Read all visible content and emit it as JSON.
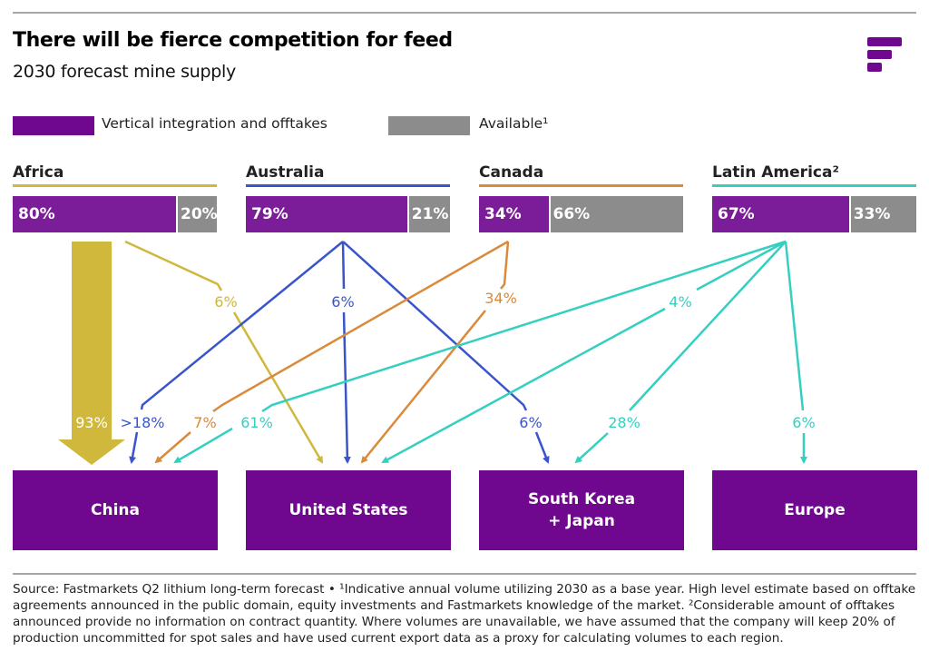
{
  "header": {
    "title": "There will be fierce competition for feed",
    "subtitle": "2030 forecast mine supply"
  },
  "logo": {
    "icon": "fastmarkets-logo-icon"
  },
  "legend": [
    {
      "label": "Vertical integration and offtakes",
      "color": "#6f078f"
    },
    {
      "label": "Available¹",
      "color": "#8c8c8c"
    }
  ],
  "colors": {
    "africa": "#cfb83b",
    "australia": "#3a55cc",
    "canada": "#d98a3a",
    "latin_america": "#35cfc2",
    "integration": "#7b1c98",
    "available": "#8c8c8c",
    "destination": "#6f078f"
  },
  "regions": [
    {
      "name": "Africa",
      "integrated_pct": 80,
      "available_pct": 20,
      "integrated_label": "80%",
      "available_label": "20%",
      "color": "#cfb83b"
    },
    {
      "name": "Australia",
      "integrated_pct": 79,
      "available_pct": 21,
      "integrated_label": "79%",
      "available_label": "21%",
      "color": "#3a55cc"
    },
    {
      "name": "Canada",
      "integrated_pct": 34,
      "available_pct": 66,
      "integrated_label": "34%",
      "available_label": "66%",
      "color": "#d98a3a"
    },
    {
      "name": "Latin America²",
      "integrated_pct": 67,
      "available_pct": 33,
      "integrated_label": "67%",
      "available_label": "33%",
      "color": "#35cfc2"
    }
  ],
  "destinations": [
    {
      "name": "China"
    },
    {
      "name": "United States"
    },
    {
      "name": "South Korea\n+ Japan"
    },
    {
      "name": "Europe"
    }
  ],
  "flows": [
    {
      "from": "Africa",
      "to": "China",
      "label": "93%"
    },
    {
      "from": "Africa",
      "to": "United States",
      "label": "6%"
    },
    {
      "from": "Australia",
      "to": "China",
      "label": ">18%"
    },
    {
      "from": "Australia",
      "to": "United States",
      "label": "6%"
    },
    {
      "from": "Australia",
      "to": "South Korea + Japan",
      "label": "6%"
    },
    {
      "from": "Canada",
      "to": "China",
      "label": "7%"
    },
    {
      "from": "Canada",
      "to": "United States",
      "label": "34%"
    },
    {
      "from": "Latin America",
      "to": "China",
      "label": "61%"
    },
    {
      "from": "Latin America",
      "to": "United States",
      "label": "4%"
    },
    {
      "from": "Latin America",
      "to": "South Korea + Japan",
      "label": "28%"
    },
    {
      "from": "Latin America",
      "to": "Europe",
      "label": "6%"
    }
  ],
  "footer": {
    "text": "Source: Fastmarkets Q2 lithium long-term forecast • ¹Indicative annual volume utilizing 2030 as a base year. High level estimate based on offtake agreements announced in the public domain, equity investments and Fastmarkets knowledge of the market. ²Considerable amount of offtakes announced provide no information on contract quantity. Where volumes are unavailable, we have assumed that the company will keep 20% of production uncommitted for spot sales and have used current export data as a proxy for calculating volumes to each region."
  }
}
